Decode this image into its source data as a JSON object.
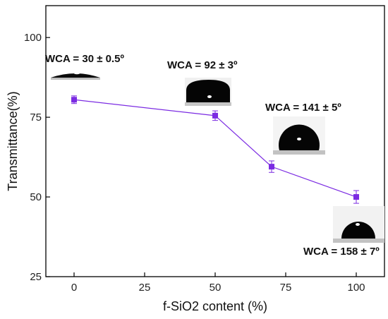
{
  "chart_data": {
    "type": "line",
    "xlabel": "f-SiO2 content (%)",
    "ylabel": "Transmittance(%)",
    "xlim": [
      -10,
      110
    ],
    "ylim": [
      25,
      110
    ],
    "xticks": [
      0,
      25,
      50,
      75,
      100
    ],
    "yticks": [
      25,
      50,
      75,
      100
    ],
    "grid": false,
    "colors": {
      "series": "#7B2BE2",
      "axis": "#000000"
    },
    "series": [
      {
        "x": [
          0,
          50,
          70,
          100
        ],
        "y": [
          80.5,
          75.5,
          59.5,
          50
        ],
        "error": [
          1.2,
          1.5,
          1.8,
          2.0
        ]
      }
    ],
    "annotations": [
      {
        "text": "WCA = 30 ± 0.5º",
        "x": 0
      },
      {
        "text": "WCA = 92 ± 3º",
        "x": 50
      },
      {
        "text": "WCA = 141 ± 5º",
        "x": 70
      },
      {
        "text": "WCA = 158 ± 7º",
        "x": 100
      }
    ],
    "insets": [
      {
        "icon": "water-droplet-image",
        "wca_degrees": 30
      },
      {
        "icon": "water-droplet-image",
        "wca_degrees": 92
      },
      {
        "icon": "water-droplet-image",
        "wca_degrees": 141
      },
      {
        "icon": "water-droplet-image",
        "wca_degrees": 158
      }
    ]
  }
}
